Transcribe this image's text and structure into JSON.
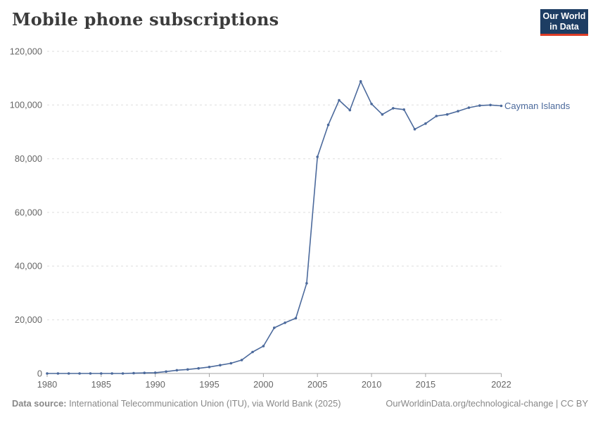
{
  "header": {
    "title": "Mobile phone subscriptions"
  },
  "logo": {
    "line1": "Our World",
    "line2": "in Data",
    "bg_color": "#1d3d63",
    "accent_color": "#dc3c26"
  },
  "chart_data": {
    "type": "line",
    "title": "Mobile phone subscriptions",
    "xlabel": "",
    "ylabel": "",
    "xlim": [
      1980,
      2022
    ],
    "ylim": [
      0,
      120000
    ],
    "grid": "horizontal-dashed",
    "legend": "end-of-line-label",
    "x": [
      1980,
      1981,
      1982,
      1983,
      1984,
      1985,
      1986,
      1987,
      1988,
      1989,
      1990,
      1991,
      1992,
      1993,
      1994,
      1995,
      1996,
      1997,
      1998,
      1999,
      2000,
      2001,
      2002,
      2003,
      2004,
      2005,
      2006,
      2007,
      2008,
      2009,
      2010,
      2011,
      2012,
      2013,
      2014,
      2015,
      2016,
      2017,
      2018,
      2019,
      2020,
      2021,
      2022
    ],
    "series": [
      {
        "name": "Cayman Islands",
        "color": "#4c6a9c",
        "values": [
          0,
          0,
          0,
          0,
          0,
          0,
          0,
          0,
          100,
          200,
          300,
          700,
          1200,
          1500,
          1900,
          2400,
          3100,
          3800,
          5000,
          8000,
          10200,
          17000,
          18900,
          20600,
          33600,
          80700,
          92600,
          101800,
          98100,
          108800,
          100400,
          96500,
          98800,
          98300,
          91000,
          93100,
          95900,
          96500,
          97700,
          99000,
          99800,
          100000,
          99700
        ]
      }
    ],
    "xticks": [
      {
        "value": 1980,
        "label": "1980"
      },
      {
        "value": 1985,
        "label": "1985"
      },
      {
        "value": 1990,
        "label": "1990"
      },
      {
        "value": 1995,
        "label": "1995"
      },
      {
        "value": 2000,
        "label": "2000"
      },
      {
        "value": 2005,
        "label": "2005"
      },
      {
        "value": 2010,
        "label": "2010"
      },
      {
        "value": 2015,
        "label": "2015"
      },
      {
        "value": 2022,
        "label": "2022"
      }
    ],
    "yticks": [
      {
        "value": 0,
        "label": "0"
      },
      {
        "value": 20000,
        "label": "20,000"
      },
      {
        "value": 40000,
        "label": "40,000"
      },
      {
        "value": 60000,
        "label": "60,000"
      },
      {
        "value": 80000,
        "label": "80,000"
      },
      {
        "value": 100000,
        "label": "100,000"
      },
      {
        "value": 120000,
        "label": "120,000"
      }
    ]
  },
  "footer": {
    "source_label": "Data source:",
    "source_text": "International Telecommunication Union (ITU), via World Bank (2025)",
    "right_text": "OurWorldinData.org/technological-change | CC BY"
  }
}
